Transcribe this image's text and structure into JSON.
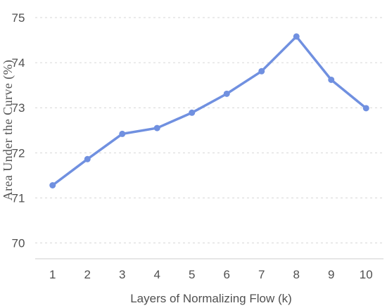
{
  "chart_data": {
    "type": "line",
    "title": "",
    "xlabel": "Layers of Normalizing Flow (k)",
    "ylabel": "Area Under the Curve  (%)",
    "x": [
      1,
      2,
      3,
      4,
      5,
      6,
      7,
      8,
      9,
      10
    ],
    "x_tick_labels": [
      "1",
      "2",
      "3",
      "4",
      "5",
      "6",
      "7",
      "8",
      "9",
      "10"
    ],
    "y_ticks": [
      70,
      71,
      72,
      73,
      74,
      75
    ],
    "y_tick_labels": [
      "70",
      "71",
      "72",
      "73",
      "74",
      "75"
    ],
    "ylim": [
      69.65,
      75.0
    ],
    "xlim": [
      0.5,
      10.5
    ],
    "grid": "horizontal dashed",
    "series": [
      {
        "values": [
          71.28,
          71.86,
          72.42,
          72.55,
          72.89,
          73.31,
          73.81,
          74.58,
          73.62,
          72.99
        ],
        "color": "#7090e0"
      }
    ],
    "colors": {
      "line": "#7090e0",
      "grid": "#d6d6d6",
      "axis": "#cccccc",
      "text": "#505050"
    }
  }
}
